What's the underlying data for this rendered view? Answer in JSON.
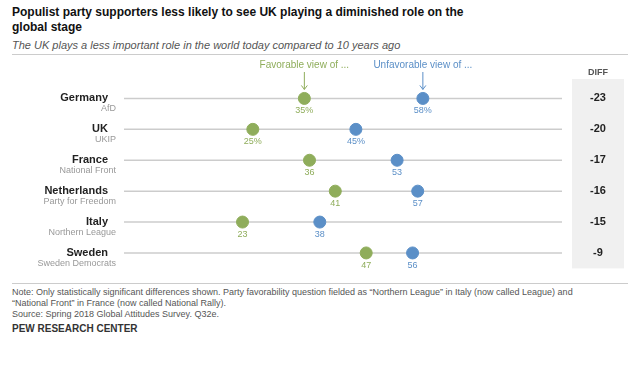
{
  "chart_data": {
    "type": "dot",
    "title": "Populist party supporters less likely to see UK playing a diminished role on the\nglobal stage",
    "subtitle": "The UK plays a less important role in the world today compared to 10 years ago",
    "note": "Note: Only statistically significant differences shown. Party favorability question fielded as “Northern League” in Italy (now called League) and\n“National Front” in France (now called National Rally).\nSource: Spring 2018 Global Attitudes Survey. Q32e.",
    "source": "PEW RESEARCH CENTER",
    "categories": [
      "Germany",
      "UK",
      "France",
      "Netherlands",
      "Italy",
      "Sweden"
    ],
    "parties": [
      "AfD",
      "UKIP",
      "National Front",
      "Party for Freedom",
      "Northern League",
      "Sweden Democrats"
    ],
    "series": [
      {
        "name": "Favorable view of ...",
        "color": "#8fad5b",
        "values": [
          35,
          25,
          36,
          41,
          23,
          47
        ],
        "value_labels": [
          "35%",
          "25%",
          "36",
          "41",
          "23",
          "47"
        ]
      },
      {
        "name": "Unfavorable view of ...",
        "color": "#5b8fc7",
        "values": [
          58,
          45,
          53,
          57,
          38,
          56
        ],
        "value_labels": [
          "58%",
          "45%",
          "53",
          "57",
          "38",
          "56"
        ]
      }
    ],
    "diff_header": "DIFF",
    "diff": [
      -23,
      -20,
      -17,
      -16,
      -15,
      -9
    ],
    "xlim": [
      0,
      85
    ],
    "grid": false,
    "tick_labels": "y",
    "data_labels": true
  }
}
